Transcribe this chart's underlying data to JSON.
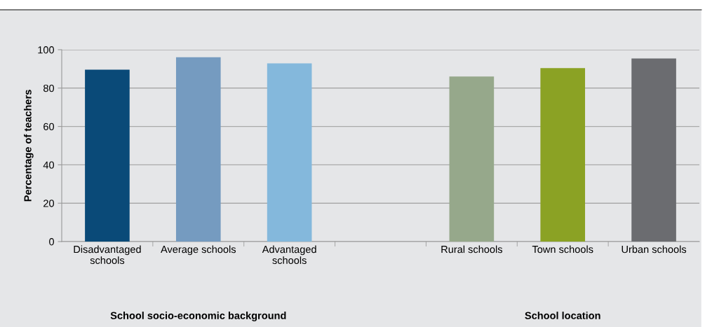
{
  "chart_data": {
    "type": "bar",
    "ylabel": "Percentage of teachers",
    "categories": [
      "Disadvantaged\nschools",
      "Average schools",
      "Advantaged\nschools",
      null,
      "Rural schools",
      "Town schools",
      "Urban schools"
    ],
    "values": [
      89.6,
      96.1,
      92.9,
      null,
      86.0,
      90.4,
      95.4
    ],
    "colors": [
      "#0a4a78",
      "#759bc0",
      "#84b8dc",
      "#cccccc",
      "#96a88b",
      "#8ba224",
      "#6b6c70"
    ],
    "ylim": [
      0,
      100
    ],
    "yticks": [
      0,
      20,
      40,
      60,
      80,
      100
    ],
    "grid": "y",
    "annotations": [
      "School socio-economic background",
      "School location"
    ]
  }
}
